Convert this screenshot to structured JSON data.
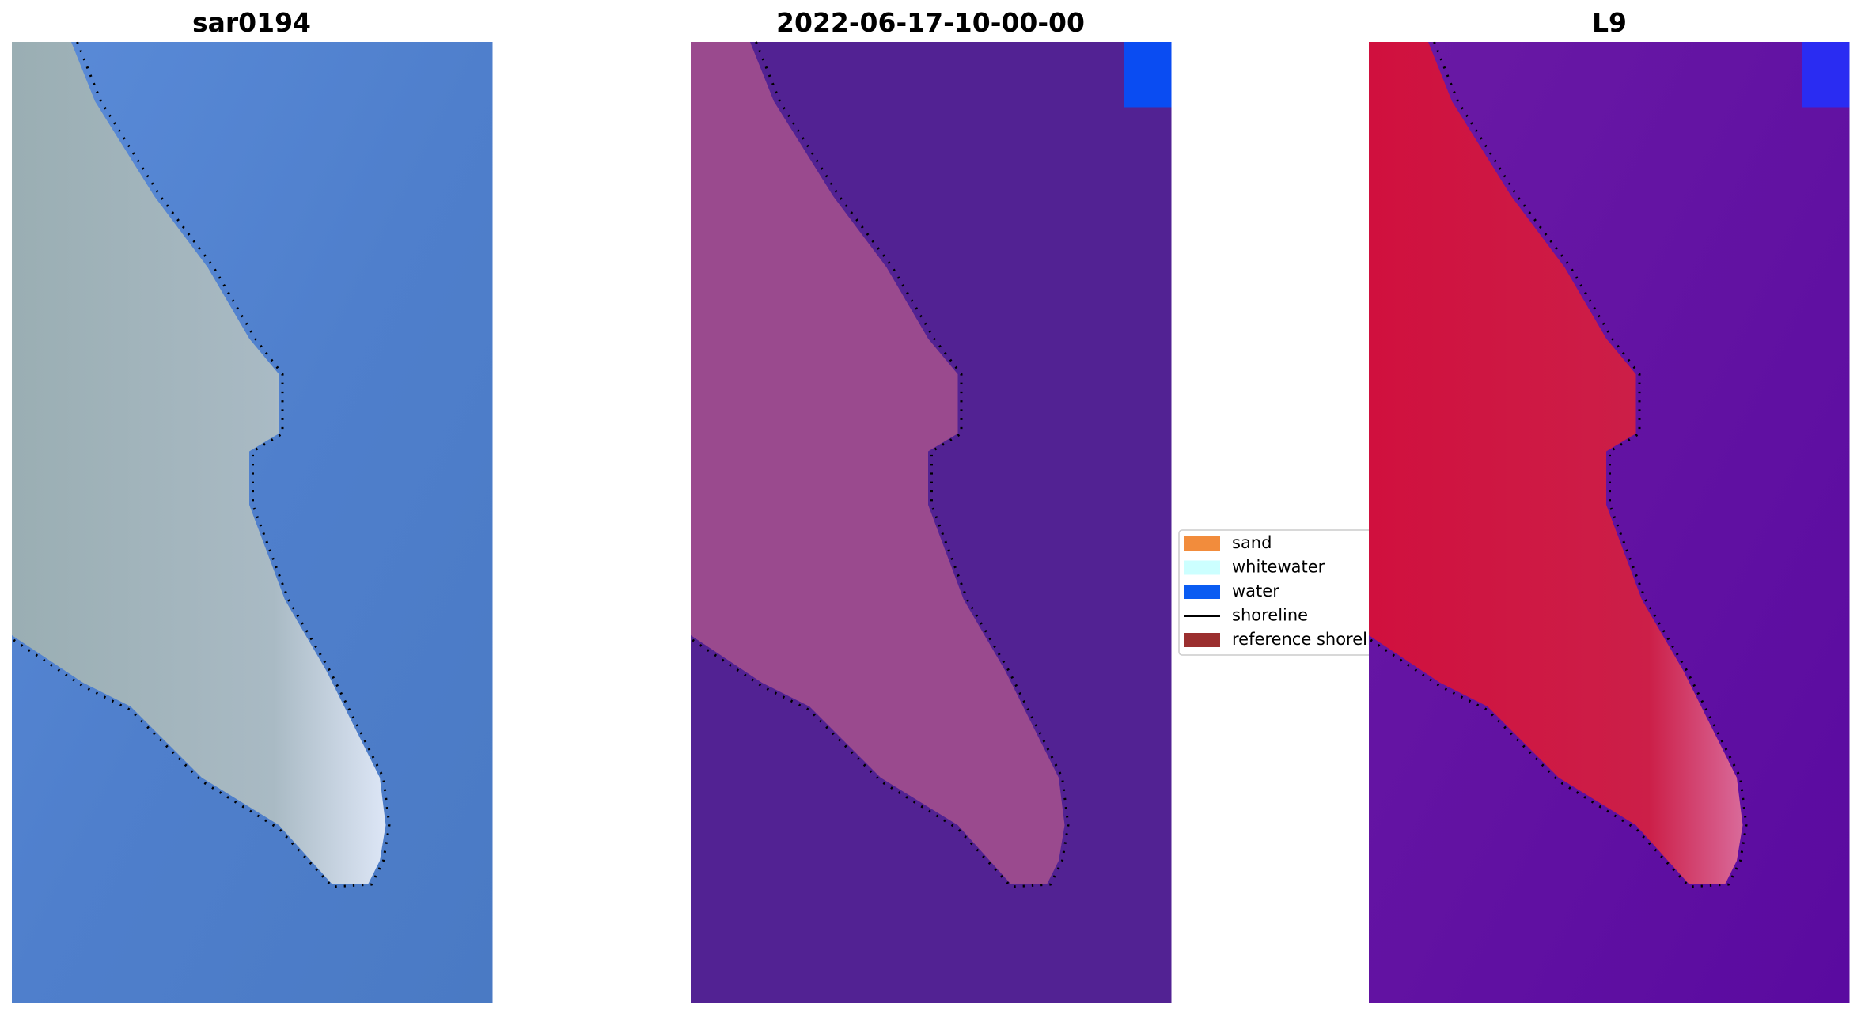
{
  "panels": [
    {
      "title": "sar0194"
    },
    {
      "title": "2022-06-17-10-00-00"
    },
    {
      "title": "L9"
    }
  ],
  "legend": [
    {
      "label": "sand",
      "color": "#f28c3c",
      "kind": "patch"
    },
    {
      "label": "whitewater",
      "color": "#ccffff",
      "kind": "patch"
    },
    {
      "label": "water",
      "color": "#0a5cf2",
      "kind": "patch"
    },
    {
      "label": "shoreline",
      "color": "#000000",
      "kind": "line"
    },
    {
      "label": "reference shoreline",
      "color": "#9b2f2f",
      "kind": "patch"
    }
  ]
}
